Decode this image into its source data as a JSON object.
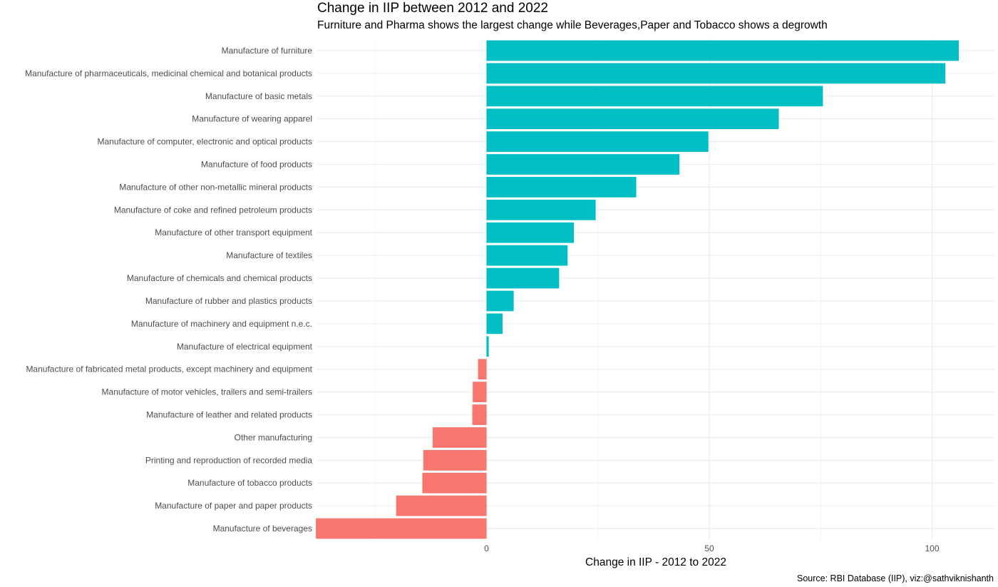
{
  "chart_data": {
    "type": "bar",
    "orientation": "horizontal",
    "title": "Change in IIP between 2012 and 2022",
    "subtitle": "Furniture and Pharma shows the largest change while Beverages,Paper and Tobacco shows a degrowth",
    "xlabel": "Change in IIP - 2012 to 2022",
    "ylabel": "",
    "caption": "Source: RBI Database (IIP), viz:@sathviknishanth",
    "xlim": [
      -38,
      114
    ],
    "xticks": [
      0,
      50,
      100
    ],
    "grid": true,
    "legend": "none",
    "colors": {
      "positive": "#00BFC4",
      "negative": "#F8766D",
      "grid": "#ebebeb",
      "axis_text": "#4d4d4d"
    },
    "categories": [
      "Manufacture of furniture",
      "Manufacture of pharmaceuticals, medicinal chemical and botanical products",
      "Manufacture of basic metals",
      "Manufacture of wearing apparel",
      "Manufacture of computer, electronic and optical products",
      "Manufacture of food products",
      "Manufacture of other non-metallic mineral products",
      "Manufacture of coke and refined petroleum products",
      "Manufacture of other transport equipment",
      "Manufacture of textiles",
      "Manufacture of chemicals and chemical products",
      "Manufacture of rubber and plastics products",
      "Manufacture of machinery and equipment n.e.c.",
      "Manufacture of electrical equipment",
      "Manufacture of fabricated metal products, except machinery and equipment",
      "Manufacture of motor vehicles, trailers and semi-trailers",
      "Manufacture of leather and related products",
      "Other manufacturing",
      "Printing and reproduction of recorded media",
      "Manufacture of tobacco products",
      "Manufacture of paper and paper products",
      "Manufacture of beverages"
    ],
    "values": [
      106,
      103,
      75.5,
      65.6,
      49.8,
      43.3,
      33.6,
      24.5,
      19.6,
      18.2,
      16.3,
      6.1,
      3.6,
      0.5,
      -1.9,
      -3.1,
      -3.2,
      -12.1,
      -14.2,
      -14.4,
      -20.3,
      -38.3
    ]
  }
}
